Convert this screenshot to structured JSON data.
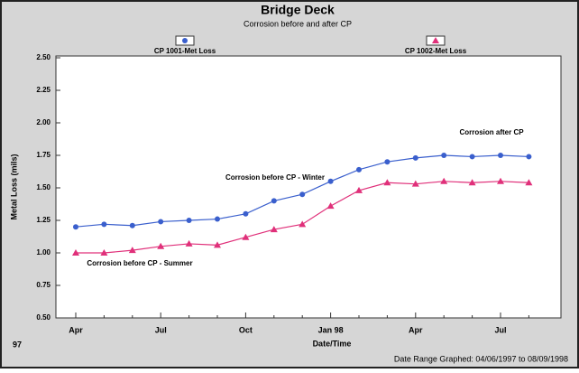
{
  "chart_data": {
    "type": "line",
    "title": "Bridge Deck",
    "subtitle": "Corrosion before and after CP",
    "y_label": "Metal Loss (mils)",
    "x_label": "Date/Time",
    "x_year_label": "97",
    "footer": "Date Range Graphed: 04/06/1997 to 08/09/1998",
    "categories": [
      "Apr",
      null,
      null,
      "Jul",
      null,
      null,
      "Oct",
      null,
      null,
      "Jan 98",
      null,
      null,
      "Apr",
      null,
      null,
      "Jul",
      null
    ],
    "series": [
      {
        "name": "CP 1001-Met Loss",
        "color": "#3a5fcd",
        "marker": "circle",
        "values": [
          1.2,
          1.22,
          1.21,
          1.24,
          1.25,
          1.26,
          1.3,
          1.4,
          1.45,
          1.55,
          1.64,
          1.7,
          1.73,
          1.75,
          1.74,
          1.75,
          1.74
        ]
      },
      {
        "name": "CP 1002-Met Loss",
        "color": "#e0307a",
        "marker": "triangle",
        "values": [
          1.0,
          1.0,
          1.02,
          1.05,
          1.07,
          1.06,
          1.12,
          1.18,
          1.22,
          1.36,
          1.48,
          1.54,
          1.53,
          1.55,
          1.54,
          1.55,
          1.54
        ]
      }
    ],
    "annotations": [
      "Corrosion after CP",
      "Corrosion before CP - Winter",
      "Corrosion before CP - Summer"
    ],
    "ylim": [
      0.5,
      2.5
    ],
    "yticks": [
      {
        "value": 0.5,
        "label": "0.50"
      },
      {
        "value": 0.75,
        "label": "0.75"
      },
      {
        "value": 1,
        "label": "1.00"
      },
      {
        "value": 1.25,
        "label": "1.25"
      },
      {
        "value": 1.5,
        "label": "1.50"
      },
      {
        "value": 1.75,
        "label": "1.75"
      },
      {
        "value": 2,
        "label": "2.00"
      },
      {
        "value": 2.25,
        "label": "2.25"
      },
      {
        "value": 2.5,
        "label": "2.50"
      }
    ],
    "grid": false
  }
}
